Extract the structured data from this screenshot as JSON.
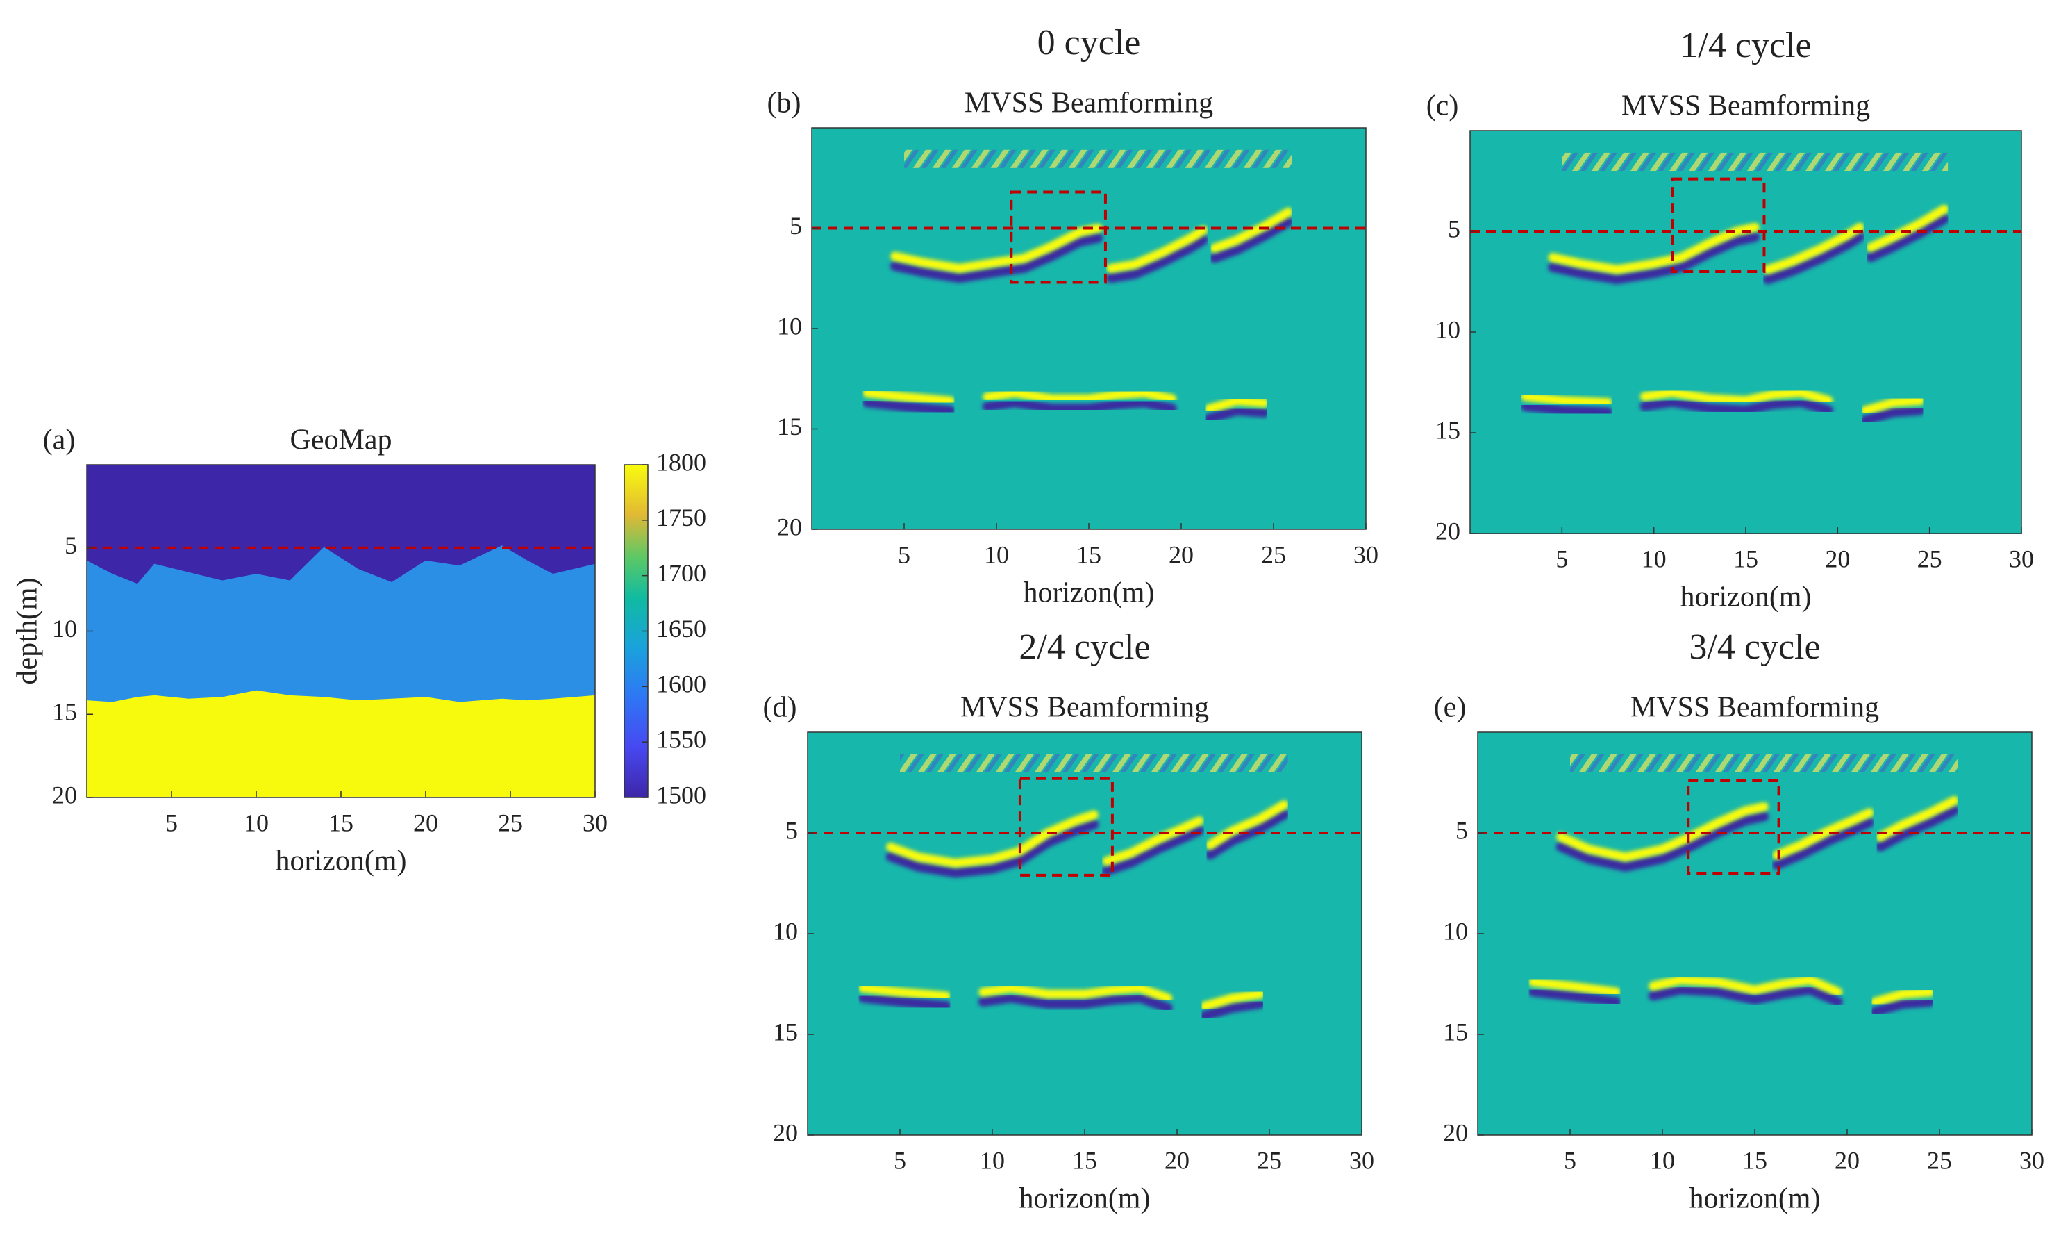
{
  "chart_data": [
    {
      "type": "heatmap",
      "label": "(a)",
      "title": "GeoMap",
      "xlabel": "horizon(m)",
      "ylabel": "depth(m)",
      "xlim": [
        0,
        30
      ],
      "ylim": [
        0,
        20
      ],
      "y_direction": "reverse",
      "xticks": [
        5,
        10,
        15,
        20,
        25,
        30
      ],
      "yticks": [
        5,
        10,
        15,
        20
      ],
      "layers": [
        {
          "value": 1500,
          "color": "#3e26a8"
        },
        {
          "value": 1600,
          "color": "#2b8fe6"
        },
        {
          "value": 1800,
          "color": "#f8fa0d"
        }
      ],
      "boundary_x": [
        0,
        1.5,
        3,
        4,
        6,
        8,
        10,
        12,
        14,
        16,
        18,
        20,
        22,
        24.5,
        26,
        27.5,
        30
      ],
      "boundaries": [
        [
          5.8,
          6.6,
          7.2,
          6.0,
          6.5,
          7.0,
          6.6,
          7.0,
          5.0,
          6.3,
          7.1,
          5.8,
          6.1,
          4.9,
          5.8,
          6.6,
          6.0
        ],
        [
          14.2,
          14.3,
          14.0,
          13.9,
          14.1,
          14.0,
          13.6,
          13.9,
          14.0,
          14.2,
          14.1,
          14.0,
          14.3,
          14.1,
          14.2,
          14.1,
          13.9
        ]
      ],
      "hline": 5,
      "hline_color": "#c00000",
      "colorbar": {
        "clim": [
          1500,
          1800
        ],
        "ticks": [
          1500,
          1550,
          1600,
          1650,
          1700,
          1750,
          1800
        ]
      }
    },
    {
      "type": "heatmap",
      "suptitle": "0 cycle",
      "label": "(b)",
      "title": "MVSS Beamforming",
      "xlabel": "horizon(m)",
      "xlim": [
        0,
        30
      ],
      "ylim": [
        0,
        20
      ],
      "y_direction": "reverse",
      "xticks": [
        5,
        10,
        15,
        20,
        25,
        30
      ],
      "yticks": [
        5,
        10,
        15,
        20
      ],
      "background": "#17b7ab",
      "crest_color": "#f9fb0e",
      "trough_color": "#3a2aa0",
      "source_band": {
        "x": [
          5,
          26
        ],
        "depth": [
          1.1,
          2.0
        ]
      },
      "reflectors": {
        "x": [
          4.5,
          6,
          8,
          10,
          11.5,
          13,
          14.5,
          15.5,
          null,
          16.2,
          17.5,
          19,
          20.5,
          21.2,
          null,
          21.8,
          23,
          24.5,
          25.8,
          null,
          3,
          5,
          7.5,
          null,
          9.5,
          11,
          13,
          15,
          16.5,
          18,
          19.5,
          null,
          21.5,
          23,
          24.5
        ],
        "depth": [
          6.4,
          6.7,
          7.0,
          6.7,
          6.5,
          5.9,
          5.2,
          5.0,
          null,
          7.0,
          6.8,
          6.2,
          5.5,
          5.1,
          null,
          6.0,
          5.6,
          4.9,
          4.2,
          null,
          13.2,
          13.4,
          13.6,
          null,
          13.4,
          13.2,
          13.5,
          13.5,
          13.3,
          13.2,
          13.5,
          null,
          14.0,
          13.6,
          13.7
        ]
      },
      "hline": 5,
      "hline_color": "#c00000",
      "box": {
        "x": [
          10.8,
          15.9
        ],
        "depth": [
          3.2,
          7.7
        ]
      }
    },
    {
      "type": "heatmap",
      "suptitle": "1/4 cycle",
      "label": "(c)",
      "title": "MVSS Beamforming",
      "xlabel": "horizon(m)",
      "xlim": [
        0,
        30
      ],
      "ylim": [
        0,
        20
      ],
      "y_direction": "reverse",
      "xticks": [
        5,
        10,
        15,
        20,
        25,
        30
      ],
      "yticks": [
        5,
        10,
        15,
        20
      ],
      "background": "#17b7ab",
      "crest_color": "#f9fb0e",
      "trough_color": "#3a2aa0",
      "source_band": {
        "x": [
          5,
          26
        ],
        "depth": [
          1.1,
          2.0
        ]
      },
      "reflectors": {
        "x": [
          4.5,
          6,
          8,
          10,
          11.5,
          13,
          14.5,
          15.5,
          null,
          16.2,
          17.5,
          19,
          20.5,
          21.2,
          null,
          21.8,
          23,
          24.5,
          25.8,
          null,
          3,
          5,
          7.5,
          null,
          9.5,
          11,
          13,
          15,
          16.5,
          18,
          19.5,
          null,
          21.5,
          23,
          24.5
        ],
        "depth": [
          6.3,
          6.6,
          6.9,
          6.6,
          6.3,
          5.6,
          5.0,
          4.8,
          null,
          6.9,
          6.5,
          5.9,
          5.2,
          4.8,
          null,
          5.8,
          5.3,
          4.6,
          3.9,
          null,
          13.2,
          13.4,
          13.5,
          null,
          13.2,
          13.0,
          13.3,
          13.4,
          13.1,
          13.0,
          13.4,
          null,
          13.9,
          13.5,
          13.4
        ]
      },
      "hline": 5,
      "hline_color": "#c00000",
      "box": {
        "x": [
          11,
          16
        ],
        "depth": [
          2.4,
          7.0
        ]
      }
    },
    {
      "type": "heatmap",
      "suptitle": "2/4 cycle",
      "label": "(d)",
      "title": "MVSS Beamforming",
      "xlabel": "horizon(m)",
      "xlim": [
        0,
        30
      ],
      "ylim": [
        0,
        20
      ],
      "y_direction": "reverse",
      "xticks": [
        5,
        10,
        15,
        20,
        25,
        30
      ],
      "yticks": [
        5,
        10,
        15,
        20
      ],
      "background": "#17b7ab",
      "crest_color": "#f9fb0e",
      "trough_color": "#3a2aa0",
      "source_band": {
        "x": [
          5,
          26
        ],
        "depth": [
          1.1,
          2.0
        ]
      },
      "reflectors": {
        "x": [
          4.5,
          6,
          8,
          10,
          11.5,
          13,
          14.5,
          15.5,
          null,
          16.2,
          17.5,
          19,
          20.5,
          21.2,
          null,
          21.8,
          23,
          24.5,
          25.8,
          null,
          3,
          5,
          7.5,
          null,
          9.5,
          11,
          13,
          15,
          16.5,
          18,
          19.5,
          null,
          21.5,
          23,
          24.5
        ],
        "depth": [
          5.7,
          6.2,
          6.5,
          6.3,
          5.9,
          5.0,
          4.4,
          4.1,
          null,
          6.4,
          6.0,
          5.3,
          4.7,
          4.4,
          null,
          5.6,
          4.9,
          4.3,
          3.6,
          null,
          12.7,
          12.9,
          13.1,
          null,
          12.9,
          12.7,
          13.0,
          13.0,
          12.8,
          12.7,
          13.2,
          null,
          13.6,
          13.2,
          13.0
        ]
      },
      "hline": 5,
      "hline_color": "#c00000",
      "box": {
        "x": [
          11.5,
          16.5
        ],
        "depth": [
          2.3,
          7.1
        ]
      }
    },
    {
      "type": "heatmap",
      "suptitle": "3/4 cycle",
      "label": "(e)",
      "title": "MVSS Beamforming",
      "xlabel": "horizon(m)",
      "xlim": [
        0,
        30
      ],
      "ylim": [
        0,
        20
      ],
      "y_direction": "reverse",
      "xticks": [
        5,
        10,
        15,
        20,
        25,
        30
      ],
      "yticks": [
        5,
        10,
        15,
        20
      ],
      "background": "#17b7ab",
      "crest_color": "#f9fb0e",
      "trough_color": "#3a2aa0",
      "source_band": {
        "x": [
          5,
          26
        ],
        "depth": [
          1.1,
          2.0
        ]
      },
      "reflectors": {
        "x": [
          4.5,
          6,
          8,
          10,
          11.5,
          13,
          14.5,
          15.5,
          null,
          16.2,
          17.5,
          19,
          20.5,
          21.2,
          null,
          21.8,
          23,
          24.5,
          25.8,
          null,
          3,
          5,
          7.5,
          null,
          9.5,
          11,
          13,
          15,
          16.5,
          18,
          19.5,
          null,
          21.5,
          23,
          24.5
        ],
        "depth": [
          5.2,
          5.8,
          6.2,
          5.8,
          5.2,
          4.5,
          3.9,
          3.7,
          null,
          6.1,
          5.6,
          4.9,
          4.3,
          4.0,
          null,
          5.2,
          4.6,
          4.0,
          3.4,
          null,
          12.4,
          12.6,
          12.9,
          null,
          12.6,
          12.3,
          12.4,
          12.8,
          12.5,
          12.3,
          12.9,
          null,
          13.4,
          13.0,
          12.9
        ]
      },
      "hline": 5,
      "hline_color": "#c00000",
      "box": {
        "x": [
          11.4,
          16.3
        ],
        "depth": [
          2.4,
          7.0
        ]
      }
    }
  ]
}
